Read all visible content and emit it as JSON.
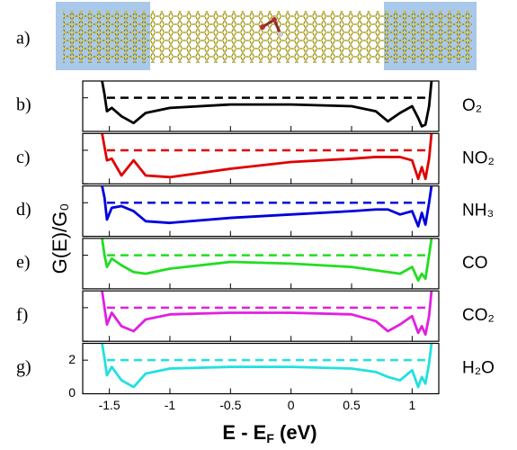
{
  "chart_data": {
    "type": "line",
    "panel_a_label": "a)",
    "xlabel": "E - E",
    "xlabel_sub": "F",
    "xlabel_unit": " (eV)",
    "ylabel": "G(E)/G₀",
    "xlim": [
      -1.72,
      1.22
    ],
    "xticks": [
      -1.5,
      -1,
      -0.5,
      0,
      0.5,
      1
    ],
    "ylim": [
      0,
      3
    ],
    "yticks": [
      0,
      2
    ],
    "reference": 2,
    "x": [
      -1.56,
      -1.54,
      -1.52,
      -1.48,
      -1.4,
      -1.3,
      -1.2,
      -1.0,
      -0.5,
      0,
      0.5,
      0.7,
      0.8,
      0.9,
      1.0,
      1.05,
      1.08,
      1.11,
      1.14,
      1.16
    ],
    "series": [
      {
        "label": "b)",
        "name": "O₂",
        "color": "#000000",
        "values": [
          3,
          2.2,
          1.2,
          1.4,
          0.9,
          0.5,
          1.1,
          1.4,
          1.6,
          1.6,
          1.5,
          1.2,
          0.6,
          1.1,
          1.5,
          0.8,
          0.3,
          0.4,
          1.5,
          3
        ]
      },
      {
        "label": "c)",
        "name": "NO₂",
        "color": "#e00000",
        "values": [
          3,
          2.2,
          1.4,
          1.5,
          0.5,
          1.4,
          0.5,
          0.4,
          0.9,
          1.3,
          1.5,
          1.6,
          1.6,
          1.6,
          1.4,
          0.3,
          1.0,
          0.3,
          1.5,
          3
        ]
      },
      {
        "label": "d)",
        "name": "NH₃",
        "color": "#0000dd",
        "values": [
          3,
          2.3,
          1.0,
          1.7,
          1.8,
          1.5,
          0.9,
          0.8,
          1.1,
          1.3,
          1.5,
          1.6,
          1.6,
          1.3,
          1.5,
          0.6,
          1.4,
          0.7,
          2.0,
          3
        ]
      },
      {
        "label": "e)",
        "name": "CO",
        "color": "#22dd22",
        "values": [
          3,
          2.0,
          1.3,
          1.8,
          1.4,
          1.0,
          0.9,
          1.2,
          1.6,
          1.5,
          1.3,
          1.1,
          1.0,
          0.9,
          1.3,
          0.5,
          0.9,
          0.6,
          2.0,
          3
        ]
      },
      {
        "label": "f)",
        "name": "CO₂",
        "color": "#e020e0",
        "values": [
          3,
          2.0,
          1.0,
          1.7,
          0.9,
          0.6,
          1.3,
          1.6,
          1.7,
          1.7,
          1.6,
          1.2,
          0.6,
          1.0,
          1.5,
          0.5,
          0.9,
          0.4,
          1.5,
          3
        ]
      },
      {
        "label": "g)",
        "name": "H₂O",
        "color": "#22e0e0",
        "values": [
          3,
          2.1,
          1.1,
          1.6,
          0.8,
          0.4,
          1.2,
          1.5,
          1.6,
          1.6,
          1.5,
          1.3,
          1.0,
          0.8,
          1.4,
          0.4,
          1.0,
          0.6,
          1.8,
          3
        ]
      }
    ]
  }
}
